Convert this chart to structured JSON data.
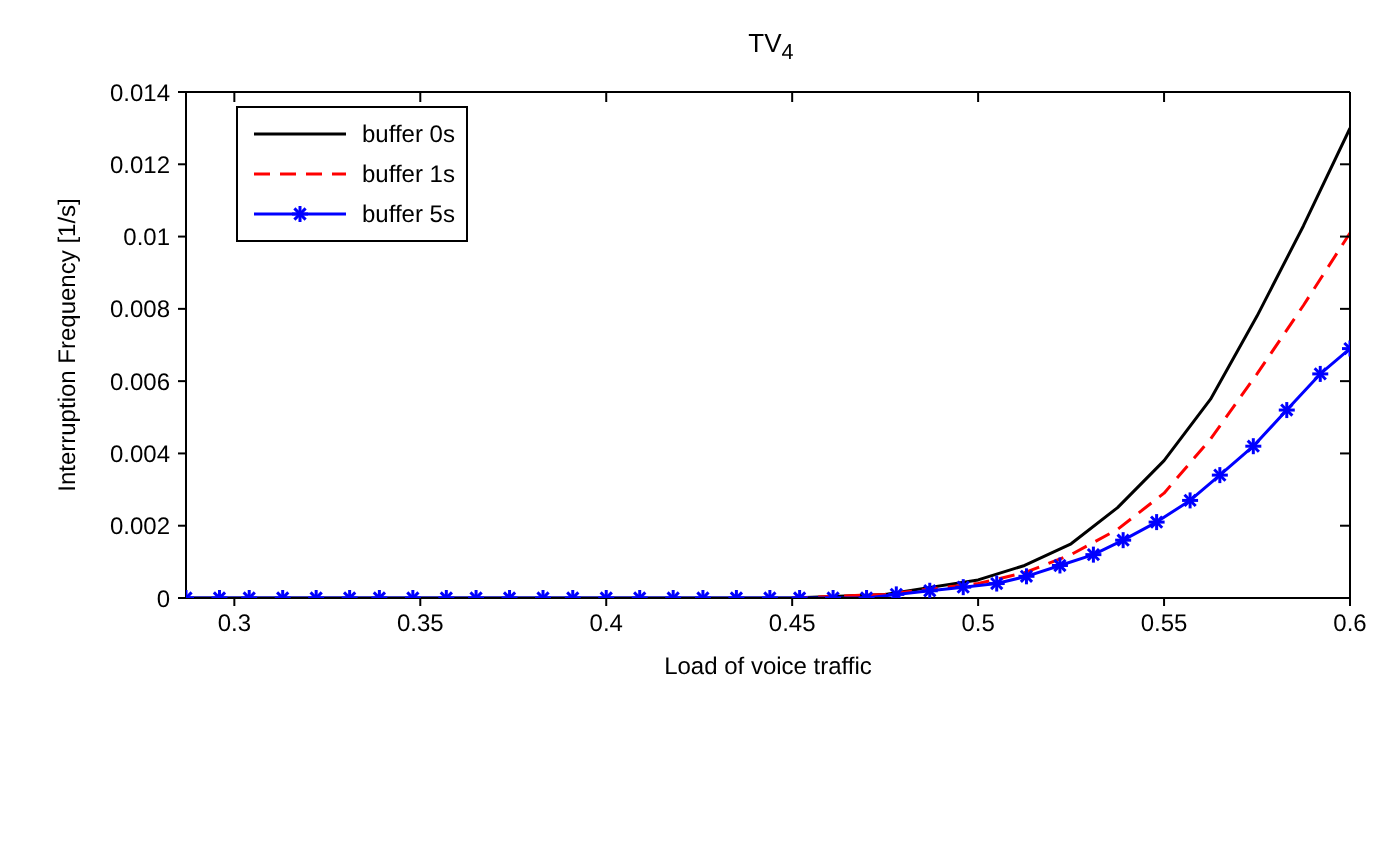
{
  "chart_data": {
    "type": "line",
    "title": "TV$_{4}$",
    "xlabel": "Load of voice traffic",
    "ylabel": "Interruption Frequency [1/s]",
    "xlim": [
      0.287,
      0.6
    ],
    "xticks": [
      0.3,
      0.35,
      0.4,
      0.45,
      0.5,
      0.55,
      0.6
    ],
    "ylim": [
      0,
      0.014
    ],
    "yticks": [
      0,
      0.002,
      0.004,
      0.006,
      0.008,
      0.01,
      0.012,
      0.014
    ],
    "grid": false,
    "legend": "top left",
    "series": [
      {
        "name": "buffer 0s",
        "color": "#000000",
        "line_style": "solid",
        "marker": "none",
        "x": [
          0.287,
          0.35,
          0.4,
          0.45,
          0.475,
          0.5,
          0.5125,
          0.525,
          0.5375,
          0.55,
          0.5625,
          0.575,
          0.5875,
          0.6
        ],
        "values": [
          0,
          0,
          0,
          0,
          0.0001,
          0.0005,
          0.0009,
          0.0015,
          0.0025,
          0.0038,
          0.0055,
          0.0078,
          0.0103,
          0.013
        ]
      },
      {
        "name": "buffer 1s",
        "color": "#ff0000",
        "line_style": "dashed",
        "marker": "none",
        "x": [
          0.45,
          0.475,
          0.5,
          0.5125,
          0.525,
          0.5375,
          0.55,
          0.5625,
          0.575,
          0.5875,
          0.6
        ],
        "values": [
          0,
          0.0001,
          0.0004,
          0.0007,
          0.0012,
          0.0019,
          0.0029,
          0.0044,
          0.0062,
          0.0081,
          0.0101
        ]
      },
      {
        "name": "buffer 5s",
        "color": "#0000ff",
        "line_style": "solid",
        "marker": "cross",
        "x": [
          0.287,
          0.296,
          0.304,
          0.313,
          0.322,
          0.331,
          0.339,
          0.348,
          0.357,
          0.365,
          0.374,
          0.383,
          0.391,
          0.4,
          0.409,
          0.418,
          0.426,
          0.435,
          0.444,
          0.452,
          0.461,
          0.47,
          0.478,
          0.487,
          0.496,
          0.505,
          0.513,
          0.522,
          0.531,
          0.539,
          0.548,
          0.557,
          0.565,
          0.574,
          0.583,
          0.592,
          0.6
        ],
        "values": [
          0,
          0,
          0,
          0,
          0,
          0,
          0,
          0,
          0,
          0,
          0,
          0,
          0,
          0,
          0,
          0,
          0,
          0,
          0,
          0,
          0,
          0,
          0.0001,
          0.0002,
          0.0003,
          0.0004,
          0.0006,
          0.0009,
          0.0012,
          0.0016,
          0.0021,
          0.0027,
          0.0034,
          0.0042,
          0.0052,
          0.0062,
          0.0069
        ]
      }
    ]
  }
}
